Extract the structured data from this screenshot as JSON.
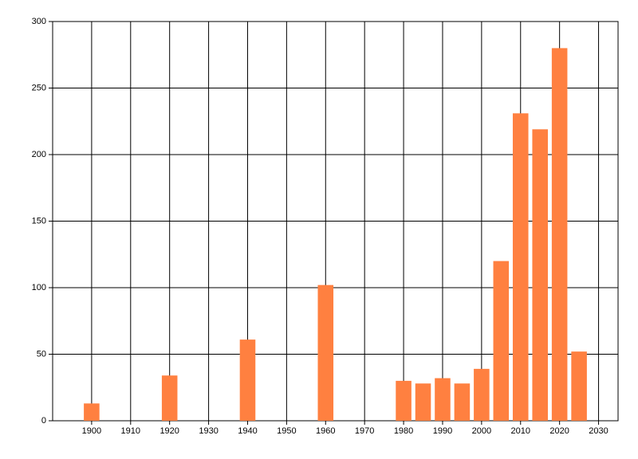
{
  "chart_data": {
    "type": "bar",
    "x": [
      1900,
      1920,
      1940,
      1960,
      1980,
      1985,
      1990,
      1995,
      2000,
      2005,
      2010,
      2015,
      2020,
      2025
    ],
    "values": [
      13,
      34,
      61,
      102,
      30,
      28,
      32,
      28,
      39,
      120,
      231,
      219,
      280,
      52
    ],
    "color": "#ff8040",
    "xlim": [
      1890,
      2035
    ],
    "xticks": [
      1900,
      1910,
      1920,
      1930,
      1940,
      1950,
      1960,
      1970,
      1980,
      1990,
      2000,
      2010,
      2020,
      2030
    ],
    "ylim": [
      0,
      300
    ],
    "yticks": [
      0,
      50,
      100,
      150,
      200,
      250,
      300
    ],
    "grid": true
  }
}
